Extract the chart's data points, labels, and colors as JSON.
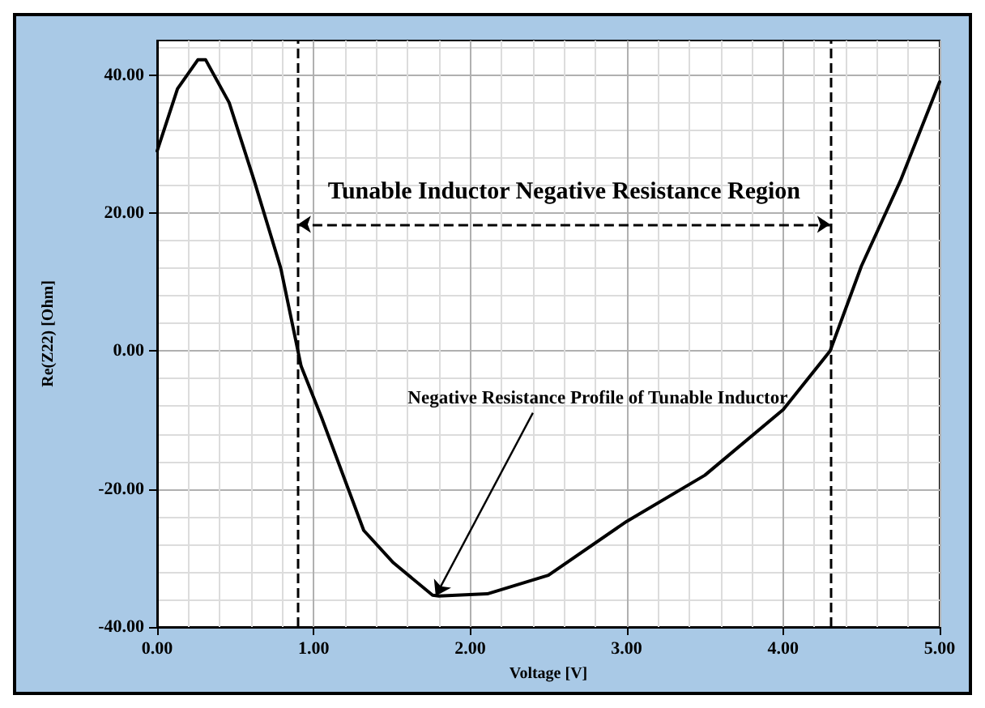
{
  "chart_data": {
    "type": "line",
    "xlabel": "Voltage [V]",
    "ylabel": "Re(Z22) [Ohm]",
    "x": [
      0,
      0.13,
      0.26,
      0.31,
      0.46,
      0.62,
      0.79,
      0.92,
      1.05,
      1.32,
      1.51,
      1.76,
      1.8,
      2.11,
      2.5,
      3.0,
      3.5,
      4.0,
      4.3,
      4.5,
      4.75,
      5.0
    ],
    "series": [
      {
        "color": "#000000",
        "values": [
          29,
          38,
          42.2,
          42.2,
          36,
          24.7,
          12,
          -2.2,
          -9.6,
          -26,
          -30.7,
          -35.4,
          -35.5,
          -35.2,
          -32.5,
          -24.7,
          -18,
          -8.5,
          0,
          12.3,
          24.7,
          39
        ]
      }
    ],
    "xlim": [
      0,
      5
    ],
    "xticks": [
      {
        "value": 0,
        "label": "0.00"
      },
      {
        "value": 1,
        "label": "1.00"
      },
      {
        "value": 2,
        "label": "2.00"
      },
      {
        "value": 3,
        "label": "3.00"
      },
      {
        "value": 4,
        "label": "4.00"
      },
      {
        "value": 5,
        "label": "5.00"
      }
    ],
    "ylim": [
      -40,
      45
    ],
    "yticks": [
      {
        "value": -40,
        "label": "-40.00"
      },
      {
        "value": -20,
        "label": "-20.00"
      },
      {
        "value": 0,
        "label": "0.00"
      },
      {
        "value": 20,
        "label": "20.00"
      },
      {
        "value": 40,
        "label": "40.00"
      }
    ],
    "grid": true,
    "marker": "none",
    "line_style": "solid",
    "ref_lines": [
      {
        "axis": "x",
        "value": 0.9,
        "line_style": "dashed"
      },
      {
        "axis": "x",
        "value": 4.3,
        "line_style": "dashed"
      }
    ],
    "annotations": [
      "Tunable Inductor Negative Resistance Region",
      {
        "text": "Negative Resistance Profile of Tunable Inductor",
        "x": 1.78,
        "y": -35.5
      }
    ]
  }
}
